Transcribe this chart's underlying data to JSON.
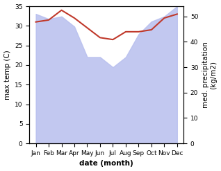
{
  "months": [
    "Jan",
    "Feb",
    "Mar",
    "Apr",
    "May",
    "Jun",
    "Jul",
    "Aug",
    "Sep",
    "Oct",
    "Nov",
    "Dec"
  ],
  "temperature": [
    31.0,
    31.5,
    34.0,
    32.0,
    29.5,
    27.0,
    26.5,
    28.5,
    28.5,
    29.0,
    32.0,
    33.0
  ],
  "precipitation": [
    51,
    49,
    50,
    46,
    34,
    34,
    30,
    34,
    43,
    48,
    50,
    54
  ],
  "temp_color": "#c0392b",
  "precip_color": "#b8bfee",
  "background_color": "#ffffff",
  "ylabel_left": "max temp (C)",
  "ylabel_right": "med. precipitation\n(kg/m2)",
  "xlabel": "date (month)",
  "ylim_left": [
    0,
    35
  ],
  "ylim_right": [
    0,
    54
  ],
  "yticks_left": [
    0,
    5,
    10,
    15,
    20,
    25,
    30,
    35
  ],
  "yticks_right": [
    0,
    10,
    20,
    30,
    40,
    50
  ],
  "label_fontsize": 7.5,
  "tick_fontsize": 6.5
}
